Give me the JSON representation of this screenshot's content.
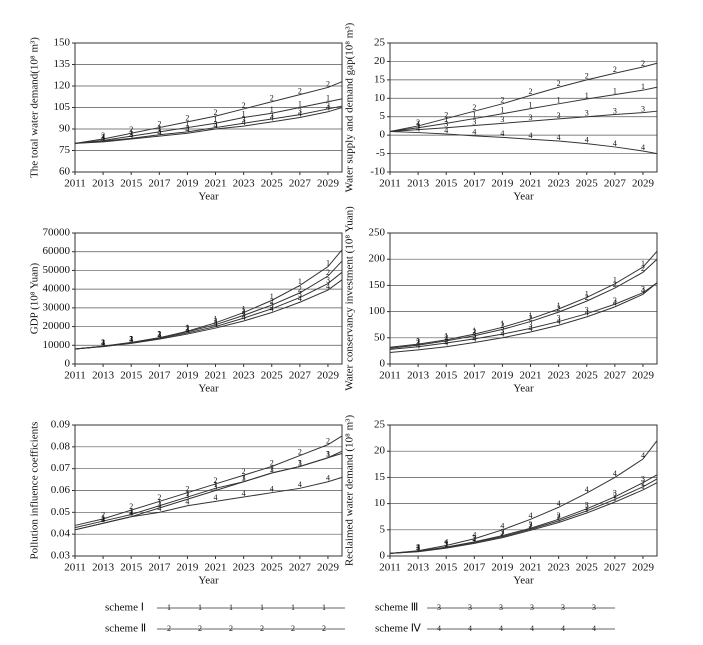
{
  "chart_data": [
    {
      "type": "line",
      "ylabel": "The total water demand(10⁸ m³)",
      "xlabel": "Year",
      "x": [
        2011,
        2013,
        2015,
        2017,
        2019,
        2021,
        2023,
        2025,
        2027,
        2029,
        2030
      ],
      "xlim": [
        2011,
        2030
      ],
      "xticks": [
        2011,
        2013,
        2015,
        2017,
        2019,
        2021,
        2023,
        2025,
        2027,
        2029
      ],
      "ylim": [
        60,
        150
      ],
      "yticks": [
        60,
        75,
        90,
        105,
        120,
        135,
        150
      ],
      "grid": true,
      "series": [
        {
          "name": "scheme Ⅰ",
          "marker": "1",
          "color": "#333333",
          "values": [
            80,
            82,
            85,
            88,
            91,
            94,
            98,
            101,
            105,
            109,
            111
          ]
        },
        {
          "name": "scheme Ⅱ",
          "marker": "2",
          "color": "#333333",
          "values": [
            80,
            83,
            87,
            91,
            95,
            99,
            104,
            109,
            114,
            119,
            123
          ]
        },
        {
          "name": "scheme Ⅲ",
          "marker": "3",
          "color": "#333333",
          "values": [
            80,
            81.5,
            83.5,
            86,
            88,
            91,
            94,
            97,
            100,
            104,
            106
          ]
        },
        {
          "name": "scheme Ⅳ",
          "marker": "4",
          "color": "#333333",
          "values": [
            80,
            81,
            83,
            85,
            87,
            90,
            92,
            95,
            98,
            102,
            105
          ]
        }
      ]
    },
    {
      "type": "line",
      "ylabel": "Water supply and demand gap(10⁸ m³)",
      "xlabel": "Year",
      "x": [
        2011,
        2013,
        2015,
        2017,
        2019,
        2021,
        2023,
        2025,
        2027,
        2029,
        2030
      ],
      "xlim": [
        2011,
        2030
      ],
      "xticks": [
        2011,
        2013,
        2015,
        2017,
        2019,
        2021,
        2023,
        2025,
        2027,
        2029
      ],
      "ylim": [
        -10,
        25
      ],
      "yticks": [
        -10,
        -5,
        0,
        5,
        10,
        15,
        20,
        25
      ],
      "grid": true,
      "series": [
        {
          "name": "scheme Ⅰ",
          "marker": "1",
          "color": "#333333",
          "values": [
            1,
            2,
            3.2,
            4.5,
            5.8,
            7.2,
            8.5,
            9.8,
            11,
            12.2,
            13
          ]
        },
        {
          "name": "scheme Ⅱ",
          "marker": "2",
          "color": "#333333",
          "values": [
            1,
            2.5,
            4.5,
            6.5,
            8.5,
            10.8,
            13,
            15,
            16.8,
            18.5,
            19.5
          ]
        },
        {
          "name": "scheme Ⅲ",
          "marker": "3",
          "color": "#333333",
          "values": [
            1,
            1.5,
            2,
            2.6,
            3.2,
            3.8,
            4.4,
            5,
            5.6,
            6.1,
            6.5
          ]
        },
        {
          "name": "scheme Ⅳ",
          "marker": "4",
          "color": "#333333",
          "values": [
            1,
            0.7,
            0.3,
            -0.2,
            -0.6,
            -1.1,
            -1.6,
            -2.3,
            -3.2,
            -4.3,
            -5
          ]
        }
      ]
    },
    {
      "type": "line",
      "ylabel": "GDP (10⁸ Yuan)",
      "xlabel": "Year",
      "x": [
        2011,
        2013,
        2015,
        2017,
        2019,
        2021,
        2023,
        2025,
        2027,
        2029,
        2030
      ],
      "xlim": [
        2011,
        2030
      ],
      "xticks": [
        2011,
        2013,
        2015,
        2017,
        2019,
        2021,
        2023,
        2025,
        2027,
        2029
      ],
      "ylim": [
        0,
        70000
      ],
      "yticks": [
        0,
        10000,
        20000,
        30000,
        40000,
        50000,
        60000,
        70000
      ],
      "grid": true,
      "series": [
        {
          "name": "scheme Ⅰ",
          "marker": "1",
          "color": "#333333",
          "values": [
            8000,
            9500,
            11500,
            14000,
            17500,
            22000,
            27500,
            34000,
            42000,
            52000,
            61000
          ]
        },
        {
          "name": "scheme Ⅱ",
          "marker": "2",
          "color": "#333333",
          "values": [
            8000,
            9500,
            11500,
            14000,
            17200,
            21000,
            26000,
            31500,
            38000,
            47000,
            55000
          ]
        },
        {
          "name": "scheme Ⅲ",
          "marker": "3",
          "color": "#333333",
          "values": [
            8000,
            9400,
            11300,
            13700,
            16600,
            20000,
            24500,
            29500,
            35500,
            43000,
            49000
          ]
        },
        {
          "name": "scheme Ⅳ",
          "marker": "4",
          "color": "#333333",
          "values": [
            8000,
            9300,
            11000,
            13300,
            16000,
            19200,
            23000,
            27500,
            33000,
            39500,
            45000
          ]
        }
      ]
    },
    {
      "type": "line",
      "ylabel": "Water conservancy investment (10⁸ Yuan)",
      "xlabel": "Year",
      "x": [
        2011,
        2013,
        2015,
        2017,
        2019,
        2021,
        2023,
        2025,
        2027,
        2029,
        2030
      ],
      "xlim": [
        2011,
        2030
      ],
      "xticks": [
        2011,
        2013,
        2015,
        2017,
        2019,
        2021,
        2023,
        2025,
        2027,
        2029
      ],
      "ylim": [
        0,
        250
      ],
      "yticks": [
        0,
        50,
        100,
        150,
        200,
        250
      ],
      "grid": true,
      "series": [
        {
          "name": "scheme Ⅰ",
          "marker": "1",
          "color": "#333333",
          "values": [
            32,
            38,
            46,
            57,
            70,
            86,
            105,
            127,
            153,
            185,
            215
          ]
        },
        {
          "name": "scheme Ⅱ",
          "marker": "2",
          "color": "#333333",
          "values": [
            30,
            36,
            44,
            54,
            66,
            81,
            99,
            120,
            145,
            175,
            200
          ]
        },
        {
          "name": "scheme Ⅲ",
          "marker": "3",
          "color": "#333333",
          "values": [
            28,
            33,
            40,
            48,
            57,
            68,
            81,
            96,
            114,
            136,
            155
          ]
        },
        {
          "name": "scheme Ⅳ",
          "marker": "4",
          "color": "#333333",
          "values": [
            22,
            27,
            33,
            41,
            50,
            61,
            74,
            90,
            109,
            133,
            155
          ]
        }
      ]
    },
    {
      "type": "line",
      "ylabel": "Pollution influence coefficients",
      "xlabel": "Year",
      "x": [
        2011,
        2013,
        2015,
        2017,
        2019,
        2021,
        2023,
        2025,
        2027,
        2029,
        2030
      ],
      "xlim": [
        2011,
        2030
      ],
      "xticks": [
        2011,
        2013,
        2015,
        2017,
        2019,
        2021,
        2023,
        2025,
        2027,
        2029
      ],
      "ylim": [
        0.03,
        0.09
      ],
      "yticks": [
        0.03,
        0.04,
        0.05,
        0.06,
        0.07,
        0.08,
        0.09
      ],
      "grid": true,
      "series": [
        {
          "name": "scheme Ⅰ",
          "marker": "1",
          "color": "#333333",
          "values": [
            0.043,
            0.046,
            0.049,
            0.053,
            0.057,
            0.061,
            0.064,
            0.068,
            0.071,
            0.075,
            0.078
          ]
        },
        {
          "name": "scheme Ⅱ",
          "marker": "2",
          "color": "#333333",
          "values": [
            0.044,
            0.047,
            0.051,
            0.055,
            0.059,
            0.063,
            0.067,
            0.071,
            0.076,
            0.081,
            0.085
          ]
        },
        {
          "name": "scheme Ⅲ",
          "marker": "3",
          "color": "#333333",
          "values": [
            0.042,
            0.045,
            0.048,
            0.052,
            0.056,
            0.06,
            0.064,
            0.068,
            0.071,
            0.075,
            0.077
          ]
        },
        {
          "name": "scheme Ⅳ",
          "marker": "4",
          "color": "#333333",
          "values": [
            0.042,
            0.045,
            0.048,
            0.05,
            0.053,
            0.055,
            0.057,
            0.059,
            0.061,
            0.064,
            0.066
          ]
        }
      ]
    },
    {
      "type": "line",
      "ylabel": "Reclaimed water demand (10⁸ m³)",
      "xlabel": "Year",
      "x": [
        2011,
        2013,
        2015,
        2017,
        2019,
        2021,
        2023,
        2025,
        2027,
        2029,
        2030
      ],
      "xlim": [
        2011,
        2030
      ],
      "xticks": [
        2011,
        2013,
        2015,
        2017,
        2019,
        2021,
        2023,
        2025,
        2027,
        2029
      ],
      "ylim": [
        0,
        25
      ],
      "yticks": [
        0,
        5,
        10,
        15,
        20,
        25
      ],
      "grid": true,
      "series": [
        {
          "name": "scheme Ⅰ",
          "marker": "1",
          "color": "#333333",
          "values": [
            0.5,
            0.8,
            1.5,
            2.4,
            3.5,
            4.9,
            6.4,
            8.2,
            10.3,
            12.6,
            14
          ]
        },
        {
          "name": "scheme Ⅱ",
          "marker": "2",
          "color": "#333333",
          "values": [
            0.5,
            0.9,
            1.6,
            2.6,
            3.7,
            5.1,
            6.7,
            8.6,
            10.8,
            13.2,
            14.7
          ]
        },
        {
          "name": "scheme Ⅲ",
          "marker": "3",
          "color": "#333333",
          "values": [
            0.5,
            0.9,
            1.7,
            2.7,
            3.9,
            5.3,
            7,
            9,
            11.3,
            14,
            15.5
          ]
        },
        {
          "name": "scheme Ⅳ",
          "marker": "4",
          "color": "#333333",
          "values": [
            0.5,
            1,
            2,
            3.3,
            5,
            7,
            9.3,
            12,
            15,
            18.5,
            22
          ]
        }
      ]
    }
  ]
}
